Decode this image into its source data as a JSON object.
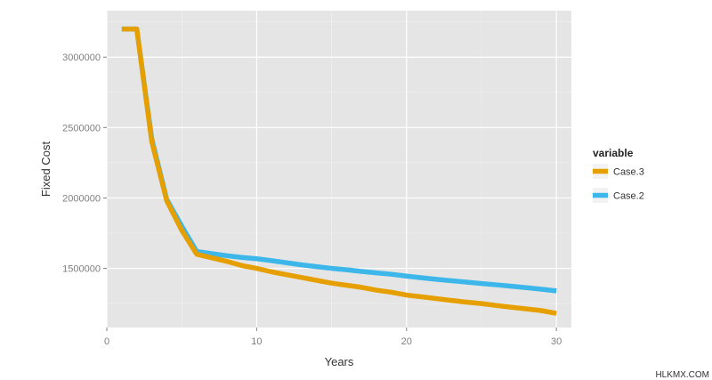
{
  "chart_data": {
    "type": "line",
    "xlabel": "Years",
    "ylabel": "Fixed Cost",
    "xlim": [
      0,
      31
    ],
    "ylim": [
      1080000,
      3330000
    ],
    "x_ticks": [
      0,
      10,
      20,
      30
    ],
    "y_ticks": [
      1500000,
      2000000,
      2500000,
      3000000
    ],
    "x_ticks_labels": [
      "0",
      "10",
      "20",
      "30"
    ],
    "y_ticks_labels": [
      "1500000",
      "2000000",
      "2500000",
      "3000000"
    ],
    "grid": true,
    "legend_title": "variable",
    "legend_position": "right",
    "series": [
      {
        "name": "Case.3",
        "color": "#E69F00",
        "x": [
          1,
          2,
          3,
          4,
          5,
          6,
          7,
          8,
          9,
          10,
          11,
          12,
          13,
          14,
          15,
          16,
          17,
          18,
          19,
          20,
          21,
          22,
          23,
          24,
          25,
          26,
          27,
          28,
          29,
          30
        ],
        "values": [
          3200000,
          3200000,
          2400000,
          1980000,
          1770000,
          1600000,
          1575000,
          1550000,
          1520000,
          1500000,
          1475000,
          1455000,
          1435000,
          1415000,
          1395000,
          1380000,
          1365000,
          1345000,
          1330000,
          1310000,
          1298000,
          1285000,
          1272000,
          1260000,
          1250000,
          1236000,
          1224000,
          1212000,
          1200000,
          1180000
        ]
      },
      {
        "name": "Case.2",
        "color": "#3DB7E9",
        "x": [
          1,
          2,
          3,
          4,
          5,
          6,
          7,
          8,
          9,
          10,
          11,
          12,
          13,
          14,
          15,
          16,
          17,
          18,
          19,
          20,
          21,
          22,
          23,
          24,
          25,
          26,
          27,
          28,
          29,
          30
        ],
        "values": [
          3200000,
          3200000,
          2420000,
          1990000,
          1800000,
          1620000,
          1605000,
          1590000,
          1578000,
          1568000,
          1555000,
          1540000,
          1525000,
          1512000,
          1500000,
          1490000,
          1478000,
          1468000,
          1458000,
          1445000,
          1433000,
          1422000,
          1412000,
          1402000,
          1392000,
          1383000,
          1373000,
          1363000,
          1352000,
          1340000
        ]
      }
    ]
  },
  "watermark": "HLKMX.COM"
}
